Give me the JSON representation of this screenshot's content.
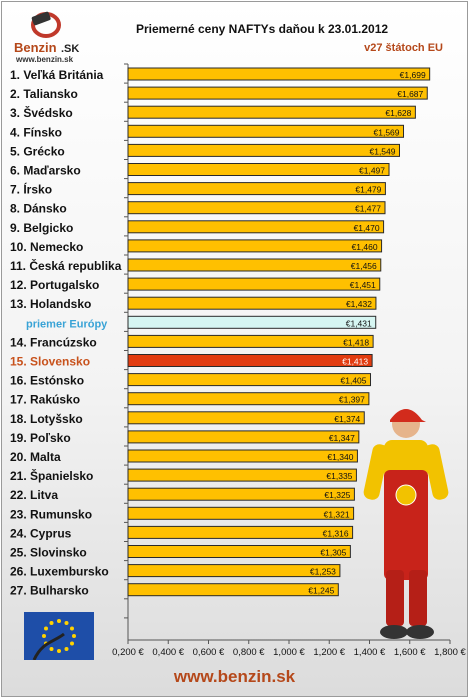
{
  "header": {
    "title": "Priemerné ceny NAFTYs daňou k 23.01.2012",
    "subtitle": "v27 štátoch EU",
    "logo_main": "Benzin",
    "logo_suffix": ".SK",
    "logo_url": "www.benzin.sk"
  },
  "footer": {
    "site": "www.benzin.sk"
  },
  "colors": {
    "bar": "#ffc000",
    "bar_average": "#d6f6f2",
    "bar_slovakia": "#e23c10",
    "label_average": "#39a3d6",
    "label_slovakia": "#c8521c",
    "brand": "#b5481a"
  },
  "chart_data": {
    "type": "bar",
    "orientation": "horizontal",
    "title": "Priemerné ceny NAFTYs daňou k 23.01.2012",
    "subtitle": "v27 štátoch EU",
    "categories": [
      "1. Veľká Británia",
      "2. Taliansko",
      "3. Švédsko",
      "4. Fínsko",
      "5. Grécko",
      "6. Maďarsko",
      "7. Írsko",
      "8. Dánsko",
      "9. Belgicko",
      "10. Nemecko",
      "11. Česká republika",
      "12. Portugalsko",
      "13. Holandsko",
      "priemer Európy",
      "14. Francúzsko",
      "15. Slovensko",
      "16. Estónsko",
      "17. Rakúsko",
      "18. Lotyšsko",
      "19. Poľsko",
      "20. Malta",
      "21. Španielsko",
      "22. Litva",
      "23. Rumunsko",
      "24. Cyprus",
      "25. Slovinsko",
      "26. Luxembursko",
      "27. Bulharsko"
    ],
    "values": [
      1.699,
      1.687,
      1.628,
      1.569,
      1.549,
      1.497,
      1.479,
      1.477,
      1.47,
      1.46,
      1.456,
      1.451,
      1.432,
      1.431,
      1.418,
      1.413,
      1.405,
      1.397,
      1.374,
      1.347,
      1.34,
      1.335,
      1.325,
      1.321,
      1.316,
      1.305,
      1.253,
      1.245
    ],
    "value_labels": [
      "€1,699",
      "€1,687",
      "€1,628",
      "€1,569",
      "€1,549",
      "€1,497",
      "€1,479",
      "€1,477",
      "€1,470",
      "€1,460",
      "€1,456",
      "€1,451",
      "€1,432",
      "€1,431",
      "€1,418",
      "€1,413",
      "€1,405",
      "€1,397",
      "€1,374",
      "€1,347",
      "€1,340",
      "€1,335",
      "€1,325",
      "€1,321",
      "€1,316",
      "€1,305",
      "€1,253",
      "€1,245"
    ],
    "highlight": {
      "average_index": 13,
      "slovakia_index": 15
    },
    "xlim": [
      0.2,
      1.8
    ],
    "xticks": [
      0.2,
      0.4,
      0.6,
      0.8,
      1.0,
      1.2,
      1.4,
      1.6,
      1.8
    ],
    "xtick_labels": [
      "0,200 €",
      "0,400 €",
      "0,600 €",
      "0,800 €",
      "1,000 €",
      "1,200 €",
      "1,400 €",
      "1,600 €",
      "1,800 €"
    ],
    "grid": false
  }
}
